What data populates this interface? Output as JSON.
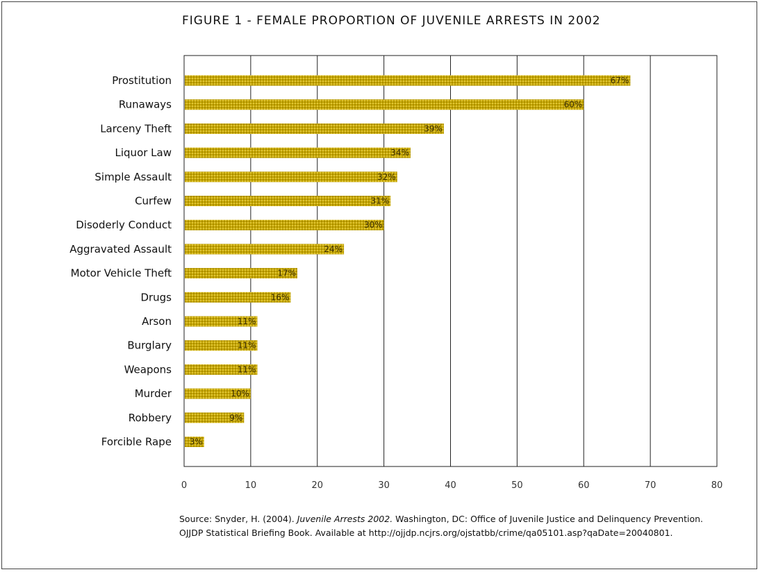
{
  "chart_data": {
    "type": "bar",
    "orientation": "horizontal",
    "title": "FIGURE 1 - FEMALE PROPORTION OF JUVENILE ARRESTS IN 2002",
    "categories": [
      "Prostitution",
      "Runaways",
      "Larceny Theft",
      "Liquor Law",
      "Simple Assault",
      "Curfew",
      "Disoderly Conduct",
      "Aggravated Assault",
      "Motor Vehicle Theft",
      "Drugs",
      "Arson",
      "Burglary",
      "Weapons",
      "Murder",
      "Robbery",
      "Forcible Rape"
    ],
    "values": [
      67,
      60,
      39,
      34,
      32,
      31,
      30,
      24,
      17,
      16,
      11,
      11,
      11,
      10,
      9,
      3
    ],
    "data_labels": [
      "67%",
      "60%",
      "39%",
      "34%",
      "32%",
      "31%",
      "30%",
      "24%",
      "17%",
      "16%",
      "11%",
      "11%",
      "11%",
      "10%",
      "9%",
      "3%"
    ],
    "xlim": [
      0,
      80
    ],
    "xticks": [
      0,
      10,
      20,
      30,
      40,
      50,
      60,
      70,
      80
    ],
    "xlabel": "",
    "ylabel": "",
    "grid": "vertical",
    "bar_color": "#c8a800"
  },
  "source": {
    "prefix": "Source: Snyder, H. (2004). ",
    "title_italic": "Juvenile Arrests 2002.",
    "rest": " Washington, DC: Office of Juvenile Justice and Delinquency Prevention. OJJDP Statistical Briefing Book. Available at http://ojjdp.ncjrs.org/ojstatbb/crime/qa05101.asp?qaDate=20040801."
  }
}
